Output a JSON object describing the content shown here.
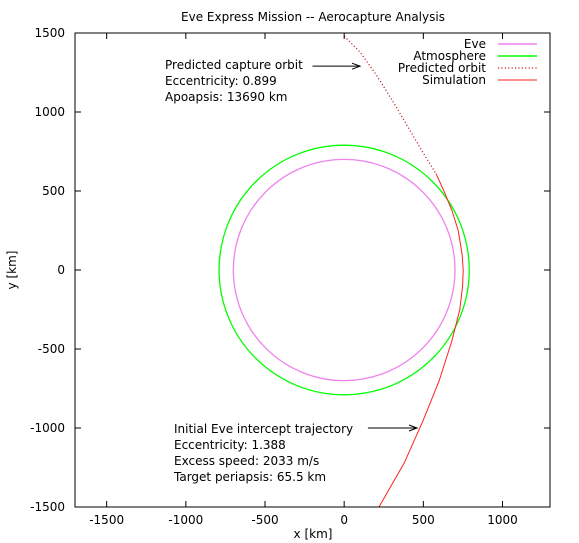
{
  "chart_data": {
    "type": "line",
    "title": "Eve Express Mission -- Aerocapture Analysis",
    "xlabel": "x [km]",
    "ylabel": "y [km]",
    "xlim": [
      -1700,
      1300
    ],
    "ylim": [
      -1500,
      1500
    ],
    "xticks": [
      -1500,
      -1000,
      -500,
      0,
      500,
      1000
    ],
    "yticks": [
      -1500,
      -1000,
      -500,
      0,
      500,
      1000,
      1500
    ],
    "grid": false,
    "legend_position": "top-right",
    "series": [
      {
        "name": "Eve",
        "kind": "circle",
        "center": [
          0,
          0
        ],
        "radius": 700,
        "color": "#ee82ee",
        "style": "solid"
      },
      {
        "name": "Atmosphere",
        "kind": "circle",
        "center": [
          0,
          0
        ],
        "radius": 790,
        "color": "#00ff00",
        "style": "solid"
      },
      {
        "name": "Predicted orbit",
        "kind": "curve",
        "color": "#c0202a",
        "style": "dotted",
        "points": [
          [
            0,
            1480
          ],
          [
            100,
            1380
          ],
          [
            200,
            1240
          ],
          [
            300,
            1080
          ],
          [
            400,
            910
          ],
          [
            500,
            740
          ],
          [
            580,
            610
          ]
        ]
      },
      {
        "name": "Simulation",
        "kind": "curve",
        "color": "#ff2020",
        "style": "solid",
        "points": [
          [
            580,
            610
          ],
          [
            630,
            500
          ],
          [
            680,
            380
          ],
          [
            720,
            250
          ],
          [
            745,
            100
          ],
          [
            752,
            0
          ],
          [
            748,
            -100
          ],
          [
            730,
            -250
          ],
          [
            680,
            -450
          ],
          [
            600,
            -700
          ],
          [
            500,
            -950
          ],
          [
            380,
            -1220
          ],
          [
            220,
            -1500
          ]
        ]
      }
    ],
    "annotations": [
      {
        "lines": [
          "Predicted capture orbit",
          "Eccentricity: 0.899",
          "Apoapsis: 13690 km"
        ],
        "arrow_from": [
          -200,
          1290
        ],
        "arrow_to": [
          100,
          1290
        ]
      },
      {
        "lines": [
          "Initial Eve intercept trajectory",
          "Eccentricity: 1.388",
          "Excess speed: 2033 m/s",
          "Target periapsis: 65.5 km"
        ],
        "arrow_from": [
          150,
          -1000
        ],
        "arrow_to": [
          460,
          -1000
        ]
      }
    ]
  }
}
